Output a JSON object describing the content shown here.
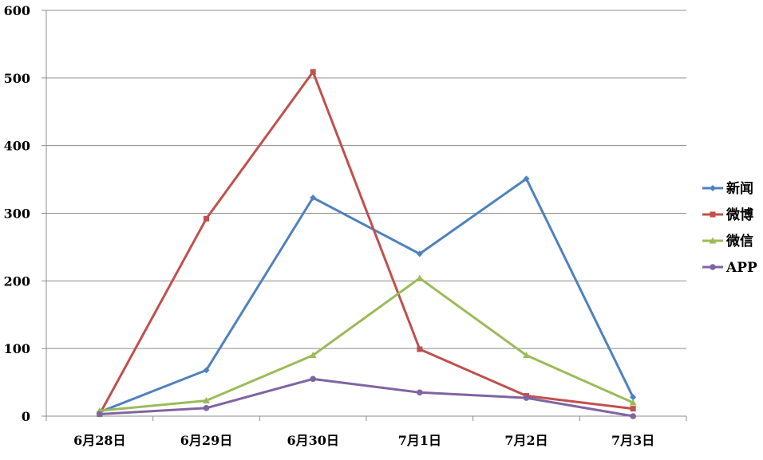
{
  "chart_data": {
    "type": "line",
    "categories": [
      "6月28日",
      "6月29日",
      "6月30日",
      "7月1日",
      "7月2日",
      "7月3日"
    ],
    "ylim": [
      0,
      600
    ],
    "yticks": [
      "0",
      "100",
      "200",
      "300",
      "400",
      "500",
      "600"
    ],
    "grid": true,
    "legend_position": "right",
    "series": [
      {
        "name": "新闻",
        "color": "#4F81BD",
        "marker": "diamond",
        "values": [
          6,
          68,
          323,
          240,
          351,
          28
        ]
      },
      {
        "name": "微博",
        "color": "#C0504D",
        "marker": "square",
        "values": [
          3,
          292,
          509,
          99,
          30,
          11
        ]
      },
      {
        "name": "微信",
        "color": "#9BBB59",
        "marker": "triangle",
        "values": [
          8,
          23,
          90,
          204,
          90,
          20
        ]
      },
      {
        "name": "APP",
        "color": "#8064A2",
        "marker": "circle",
        "values": [
          3,
          12,
          55,
          35,
          27,
          0
        ]
      }
    ]
  }
}
